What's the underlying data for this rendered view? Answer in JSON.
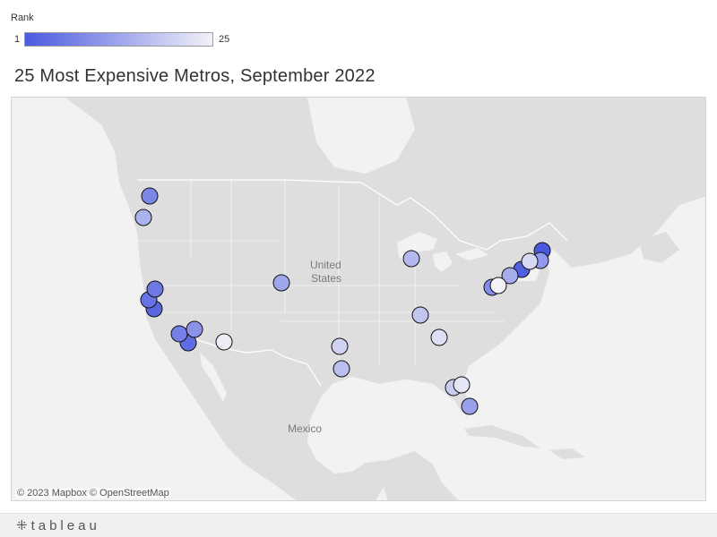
{
  "legend": {
    "title": "Rank",
    "min_label": "1",
    "max_label": "25",
    "min_color": "#4b59e0",
    "max_color": "#f2f2f7"
  },
  "title": "25 Most Expensive Metros, September 2022",
  "map": {
    "place_labels": {
      "united_states_line1": "United",
      "united_states_line2": "States",
      "mexico": "Mexico"
    },
    "attribution": "© 2023 Mapbox  © OpenStreetMap",
    "colors": {
      "land": "#dedede",
      "water": "#f2f2f2",
      "border": "#ffffff",
      "marker_stroke": "#111111"
    }
  },
  "footer": {
    "brand": "tableau",
    "icon": "tableau-plus-icon"
  },
  "markers": [
    {
      "rank": 1
    },
    {
      "rank": 2
    },
    {
      "rank": 3
    },
    {
      "rank": 4
    },
    {
      "rank": 5
    },
    {
      "rank": 6
    },
    {
      "rank": 7
    },
    {
      "rank": 8
    },
    {
      "rank": 9
    },
    {
      "rank": 10
    },
    {
      "rank": 11
    },
    {
      "rank": 12
    },
    {
      "rank": 13
    },
    {
      "rank": 14
    },
    {
      "rank": 15
    },
    {
      "rank": 16
    },
    {
      "rank": 17
    },
    {
      "rank": 18
    },
    {
      "rank": 19
    },
    {
      "rank": 20
    },
    {
      "rank": 21
    },
    {
      "rank": 22
    },
    {
      "rank": 23
    },
    {
      "rank": 24
    },
    {
      "rank": 25
    }
  ]
}
